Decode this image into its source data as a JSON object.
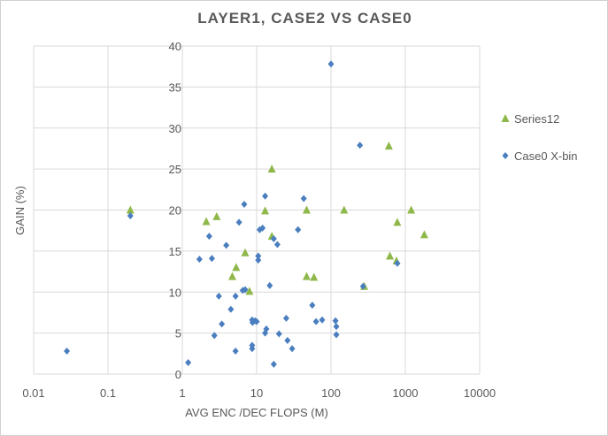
{
  "chart_data": {
    "type": "scatter",
    "title": "LAYER1, CASE2 VS CASE0",
    "xlabel": "AVG ENC /DEC FLOPS (M)",
    "ylabel": "GAIN (%)",
    "xscale": "log",
    "xlim": [
      0.01,
      10000
    ],
    "ylim": [
      0,
      40
    ],
    "xticks": [
      "0.01",
      "0.1",
      "1",
      "10",
      "100",
      "1000",
      "10000"
    ],
    "yticks": [
      "0",
      "5",
      "10",
      "15",
      "20",
      "25",
      "30",
      "35",
      "40"
    ],
    "grid": true,
    "legend": "right",
    "series": [
      {
        "name": "Series12",
        "marker": "triangle",
        "color": "#8fb84a",
        "points": [
          [
            0.2,
            20
          ],
          [
            2.1,
            18.6
          ],
          [
            2.9,
            19.2
          ],
          [
            4.7,
            11.9
          ],
          [
            5.3,
            13
          ],
          [
            7,
            14.8
          ],
          [
            8,
            10.1
          ],
          [
            13,
            19.9
          ],
          [
            16,
            25
          ],
          [
            16,
            16.8
          ],
          [
            47,
            20
          ],
          [
            47,
            11.9
          ],
          [
            59,
            11.8
          ],
          [
            150,
            20
          ],
          [
            280,
            10.7
          ],
          [
            600,
            27.8
          ],
          [
            620,
            14.4
          ],
          [
            780,
            18.5
          ],
          [
            760,
            13.8
          ],
          [
            1200,
            20
          ],
          [
            1800,
            17
          ]
        ]
      },
      {
        "name": "Case0 X-bin",
        "marker": "diamond",
        "color": "#4a7ebf",
        "points": [
          [
            0.028,
            2.8
          ],
          [
            0.2,
            19.3
          ],
          [
            1.2,
            1.4
          ],
          [
            1.7,
            14
          ],
          [
            2.3,
            16.8
          ],
          [
            2.5,
            14.1
          ],
          [
            2.7,
            4.7
          ],
          [
            3.1,
            9.5
          ],
          [
            3.4,
            6.1
          ],
          [
            3.9,
            15.7
          ],
          [
            4.5,
            7.9
          ],
          [
            5.2,
            2.8
          ],
          [
            5.2,
            9.5
          ],
          [
            5.8,
            18.5
          ],
          [
            6.8,
            20.7
          ],
          [
            6.5,
            10.2
          ],
          [
            7,
            10.3
          ],
          [
            8.7,
            6.6
          ],
          [
            8.8,
            6.3
          ],
          [
            8.7,
            3.5
          ],
          [
            8.7,
            3.1
          ],
          [
            9.5,
            6.5
          ],
          [
            10,
            6.4
          ],
          [
            10.5,
            14.4
          ],
          [
            10.5,
            13.9
          ],
          [
            11,
            17.6
          ],
          [
            12,
            17.8
          ],
          [
            13,
            21.7
          ],
          [
            13.5,
            5.5
          ],
          [
            13,
            5.0
          ],
          [
            15,
            10.8
          ],
          [
            17,
            1.2
          ],
          [
            17,
            16.5
          ],
          [
            19,
            15.8
          ],
          [
            20,
            4.9
          ],
          [
            25,
            6.8
          ],
          [
            26,
            4.1
          ],
          [
            30,
            3.1
          ],
          [
            36,
            17.6
          ],
          [
            43,
            21.4
          ],
          [
            56,
            8.4
          ],
          [
            63,
            6.4
          ],
          [
            76,
            6.6
          ],
          [
            100,
            37.8
          ],
          [
            115,
            6.5
          ],
          [
            118,
            5.8
          ],
          [
            118,
            4.8
          ],
          [
            245,
            27.9
          ],
          [
            270,
            10.7
          ],
          [
            780,
            13.5
          ]
        ]
      }
    ]
  }
}
